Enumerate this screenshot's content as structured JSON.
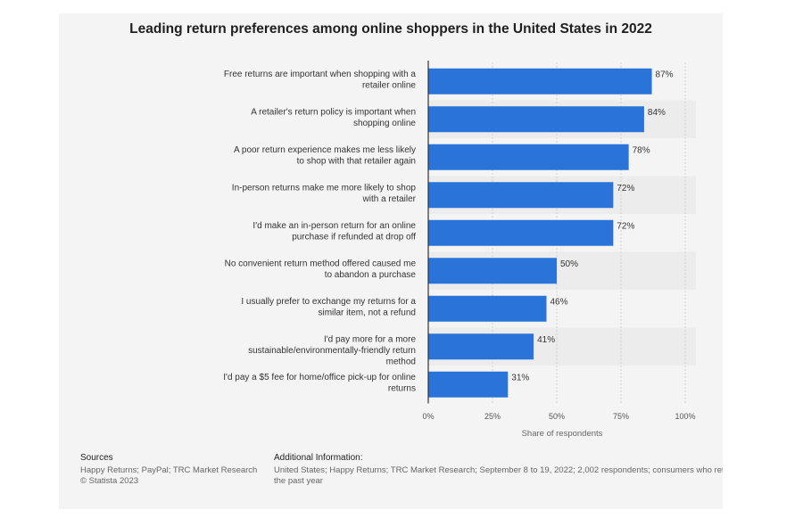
{
  "chart_data": {
    "type": "bar",
    "orientation": "horizontal",
    "title": "Leading return preferences among online shoppers in the United States in 2022",
    "xlabel": "Share of respondents",
    "ylabel": "",
    "xlim": [
      0,
      100
    ],
    "ticks": [
      "0%",
      "25%",
      "50%",
      "75%",
      "100%"
    ],
    "tick_values": [
      0,
      25,
      50,
      75,
      100
    ],
    "grid": true,
    "bar_color": "#2a74d9",
    "categories": [
      [
        "Free returns are important when shopping with a",
        "retailer online"
      ],
      [
        "A retailer's return policy is important when",
        "shopping online"
      ],
      [
        "A poor return experience makes me less likely",
        "to shop with that retailer again"
      ],
      [
        "In-person returns make me more likely to shop",
        "with a retailer"
      ],
      [
        "I'd make an in-person return for an online",
        "purchase if refunded at drop off"
      ],
      [
        "No convenient return method offered caused me",
        "to abandon a purchase"
      ],
      [
        "I usually prefer to exchange my returns for a",
        "similar item, not a refund"
      ],
      [
        "I'd pay more for a more",
        "sustainable/environmentally-friendly return",
        "method"
      ],
      [
        "I'd pay a $5 fee for home/office pick-up for online",
        "returns"
      ]
    ],
    "values": [
      87,
      84,
      78,
      72,
      72,
      50,
      46,
      41,
      31
    ],
    "labels": [
      "87%",
      "84%",
      "78%",
      "72%",
      "72%",
      "50%",
      "46%",
      "41%",
      "31%"
    ]
  },
  "footer": {
    "sources_heading": "Sources",
    "sources_line1": "Happy Returns; PayPal; TRC Market Research",
    "sources_line2": "© Statista 2023",
    "additional_heading": "Additional Information:",
    "additional_text": "United States; Happy Returns; TRC Market Research; September 8 to 19, 2022; 2,002 respondents; consumers who retu the past year"
  }
}
